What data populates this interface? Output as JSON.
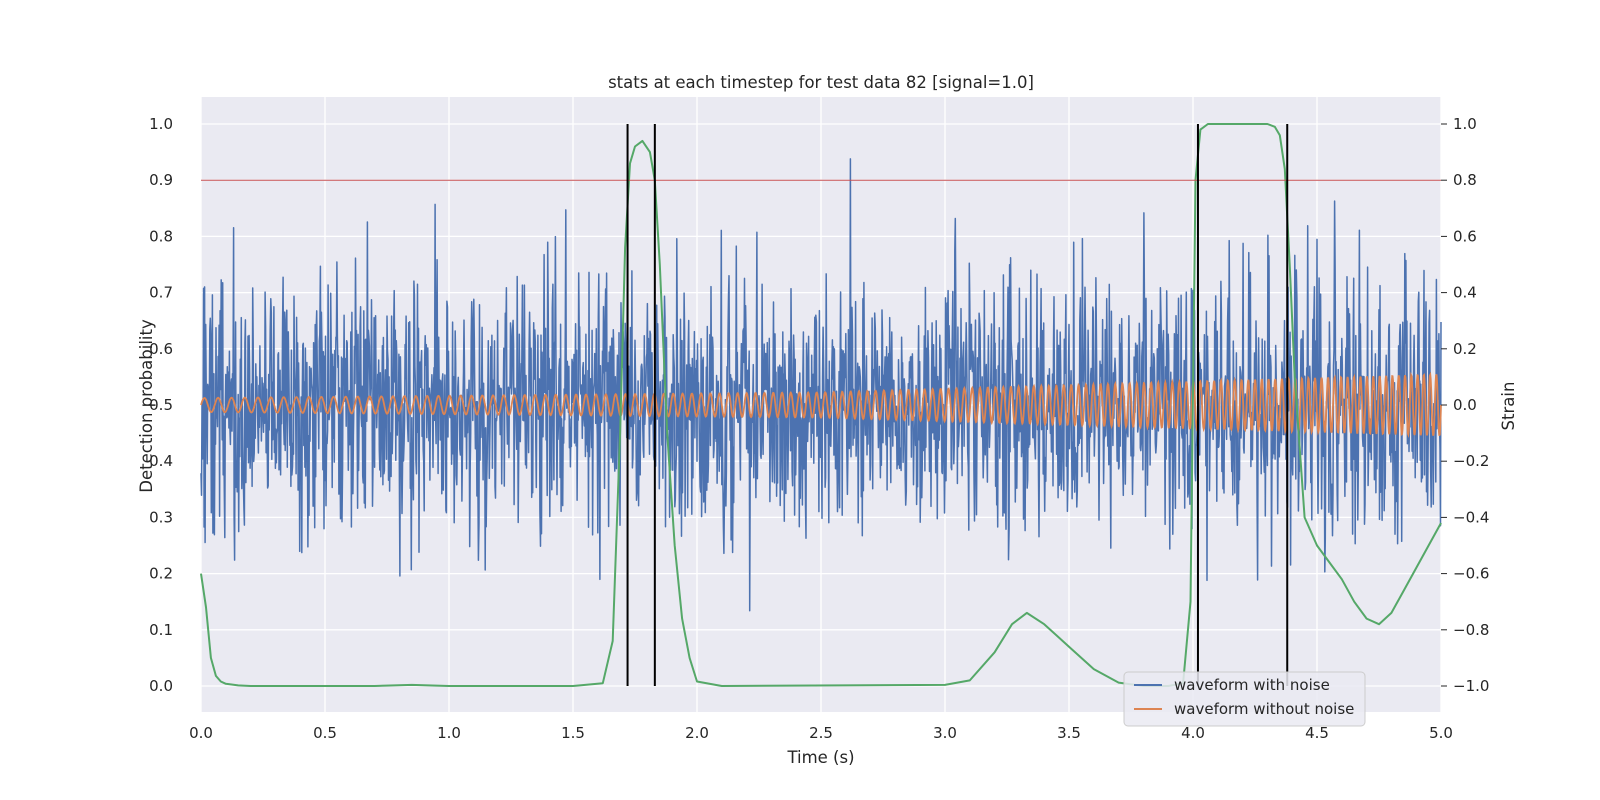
{
  "chart_data": {
    "type": "line",
    "title": "stats at each timestep for test data 82 [signal=1.0]",
    "xlabel": "Time (s)",
    "ylabel": "Detection probability",
    "y2label": "Strain",
    "xlim": [
      0.0,
      5.0
    ],
    "ylim": [
      0.0,
      1.0
    ],
    "y2lim": [
      -1.0,
      1.0
    ],
    "xticks": [
      "0.0",
      "0.5",
      "1.0",
      "1.5",
      "2.0",
      "2.5",
      "3.0",
      "3.5",
      "4.0",
      "4.5",
      "5.0"
    ],
    "yticks": [
      "0.0",
      "0.1",
      "0.2",
      "0.3",
      "0.4",
      "0.5",
      "0.6",
      "0.7",
      "0.8",
      "0.9",
      "1.0"
    ],
    "y2ticks": [
      "−1.0",
      "−0.8",
      "−0.6",
      "−0.4",
      "−0.2",
      "0.0",
      "0.2",
      "0.4",
      "0.6",
      "0.8",
      "1.0"
    ],
    "grid": true,
    "legend_position": "lower-right",
    "colors": {
      "noisy": "#4c72b0",
      "clean": "#dd8452",
      "probability": "#55a868",
      "threshold": "#c44e52",
      "markers": "#000000",
      "background": "#eaeaf2",
      "grid": "#ffffff"
    },
    "threshold": 0.9,
    "detection_markers": [
      1.72,
      1.83,
      4.02,
      4.38
    ],
    "series": [
      {
        "name": "waveform with noise",
        "axis": "right",
        "noise_std": 0.22,
        "clip": [
          -1.0,
          1.0
        ]
      },
      {
        "name": "waveform without noise",
        "axis": "right",
        "amplitude_envelope": {
          "x": [
            0.0,
            2.5,
            5.0
          ],
          "y": [
            0.025,
            0.045,
            0.11
          ]
        },
        "frequency_hz": {
          "start": 18,
          "end": 40
        }
      },
      {
        "axis": "left",
        "x": [
          0.0,
          0.02,
          0.04,
          0.06,
          0.08,
          0.1,
          0.15,
          0.2,
          0.5,
          0.7,
          0.85,
          1.0,
          1.5,
          1.62,
          1.66,
          1.69,
          1.71,
          1.73,
          1.75,
          1.78,
          1.81,
          1.83,
          1.85,
          1.88,
          1.91,
          1.94,
          1.97,
          2.0,
          2.1,
          3.0,
          3.1,
          3.2,
          3.27,
          3.33,
          3.4,
          3.5,
          3.6,
          3.7,
          3.8,
          3.9,
          3.96,
          3.99,
          4.01,
          4.03,
          4.06,
          4.1,
          4.3,
          4.33,
          4.35,
          4.37,
          4.39,
          4.41,
          4.45,
          4.5,
          4.55,
          4.6,
          4.65,
          4.7,
          4.75,
          4.8,
          4.85,
          4.9,
          4.95,
          5.0
        ],
        "y": [
          0.2,
          0.14,
          0.05,
          0.018,
          0.008,
          0.004,
          0.001,
          0.0,
          0.0,
          0.0,
          0.002,
          0.0,
          0.0,
          0.005,
          0.08,
          0.45,
          0.78,
          0.93,
          0.96,
          0.97,
          0.95,
          0.9,
          0.75,
          0.45,
          0.25,
          0.12,
          0.05,
          0.008,
          0.0,
          0.002,
          0.01,
          0.06,
          0.11,
          0.13,
          0.11,
          0.07,
          0.03,
          0.006,
          0.0,
          0.0,
          0.005,
          0.15,
          0.9,
          0.99,
          1.0,
          1.0,
          1.0,
          0.995,
          0.98,
          0.92,
          0.75,
          0.55,
          0.3,
          0.25,
          0.22,
          0.19,
          0.15,
          0.12,
          0.11,
          0.13,
          0.17,
          0.21,
          0.25,
          0.29
        ]
      }
    ]
  }
}
